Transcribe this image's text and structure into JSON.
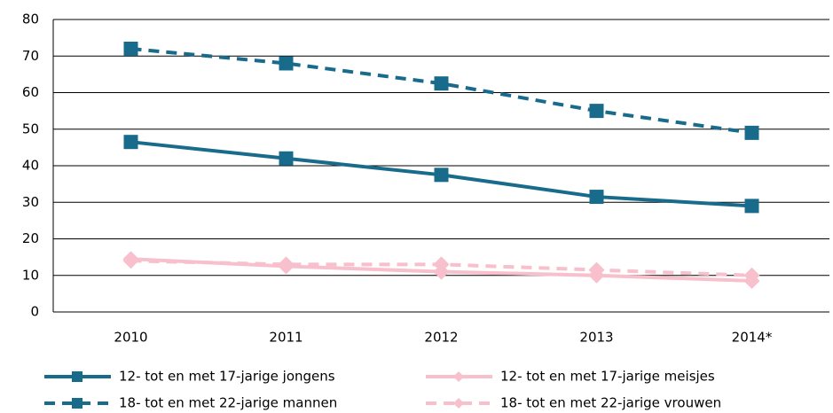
{
  "chart_data": {
    "type": "line",
    "categories": [
      "2010",
      "2011",
      "2012",
      "2013",
      "2014*"
    ],
    "series": [
      {
        "name": "12- tot en met 17-jarige jongens",
        "color": "#196b8c",
        "dash": false,
        "marker": "square",
        "values": [
          46.5,
          42,
          37.5,
          31.5,
          29
        ]
      },
      {
        "name": "12- tot en met 17-jarige meisjes",
        "color": "#f8bfcc",
        "dash": false,
        "marker": "diamond",
        "values": [
          14.5,
          12.5,
          11,
          10,
          8.5
        ]
      },
      {
        "name": "18- tot en met 22-jarige mannen",
        "color": "#196b8c",
        "dash": true,
        "marker": "square",
        "values": [
          72,
          68,
          62.5,
          55,
          49
        ]
      },
      {
        "name": "18- tot en met 22-jarige vrouwen",
        "color": "#f8bfcc",
        "dash": true,
        "marker": "diamond",
        "values": [
          14,
          13,
          13,
          11.5,
          10
        ]
      }
    ],
    "ylim": [
      0,
      80
    ],
    "yticks": [
      0,
      10,
      20,
      30,
      40,
      50,
      60,
      70,
      80
    ],
    "grid": true
  }
}
